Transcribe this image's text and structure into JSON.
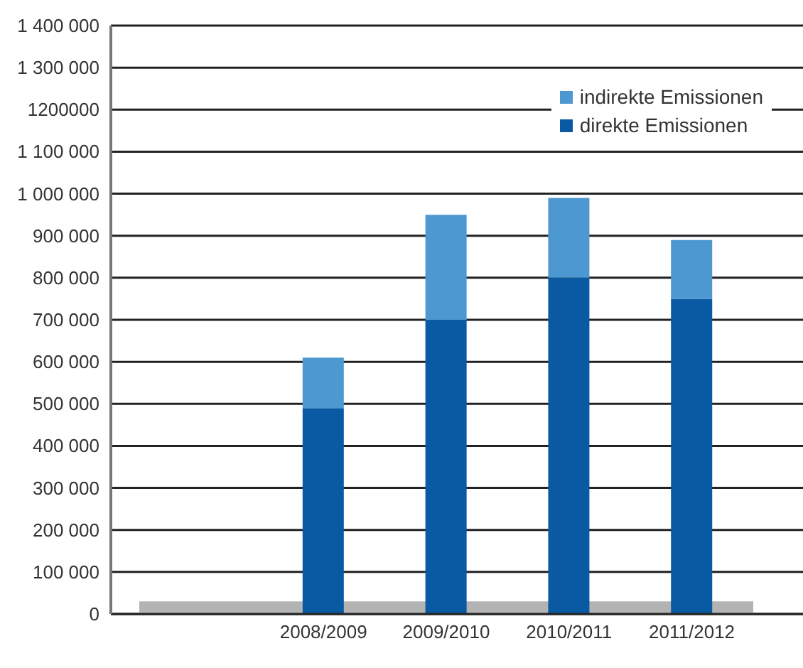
{
  "chart_data": {
    "type": "bar",
    "stacked": true,
    "categories": [
      null,
      "2008/2009",
      "2009/2010",
      "2010/2011",
      "2011/2012"
    ],
    "series": [
      {
        "name": "direkte Emissionen",
        "color": "#0a5aa3",
        "values": [
          null,
          490000,
          700000,
          800000,
          750000
        ]
      },
      {
        "name": "indirekte Emissionen",
        "color": "#4d98d0",
        "values": [
          null,
          120000,
          250000,
          190000,
          140000
        ]
      }
    ],
    "ylim": [
      0,
      1400000
    ],
    "yticks": [
      0,
      {
        "value": 100000,
        "label": "100 000"
      },
      {
        "value": 200000,
        "label": "200 000"
      },
      {
        "value": 300000,
        "label": "300 000"
      },
      {
        "value": 400000,
        "label": "400 000"
      },
      {
        "value": 500000,
        "label": "500 000"
      },
      {
        "value": 600000,
        "label": "600 000"
      },
      {
        "value": 700000,
        "label": "700 000"
      },
      {
        "value": 800000,
        "label": "800 000"
      },
      {
        "value": 900000,
        "label": "900 000"
      },
      {
        "value": 1000000,
        "label": "1 000 000"
      },
      {
        "value": 1100000,
        "label": "1 100 000"
      },
      {
        "value": 1200000,
        "label": "1200000"
      },
      {
        "value": 1300000,
        "label": "1 300 000"
      },
      {
        "value": 1400000,
        "label": "1 400 000"
      }
    ],
    "bands": [
      {
        "axis": "y",
        "from": 0,
        "to": 30000,
        "color": "#b3b3b3"
      }
    ],
    "grid": "y",
    "legend": "top right"
  }
}
